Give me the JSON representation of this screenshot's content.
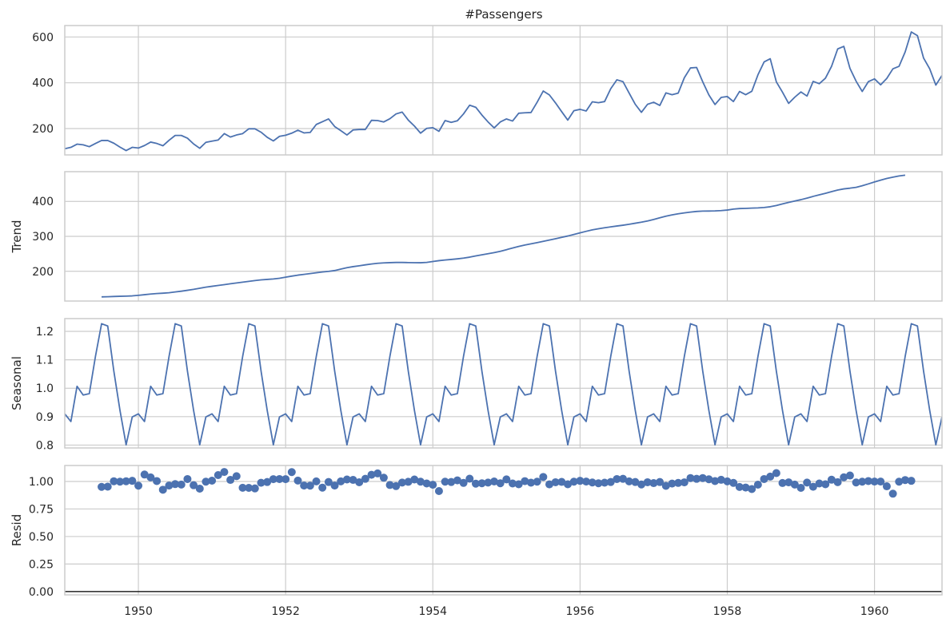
{
  "chart_data": [
    {
      "type": "line",
      "title": "#Passengers",
      "ylabel": "",
      "ylim": [
        85,
        650
      ],
      "yticks": [
        200,
        400,
        600
      ],
      "ytick_labels": [
        "200",
        "400",
        "600"
      ],
      "x_start": "1949-01",
      "series": [
        {
          "values": [
            112,
            118,
            132,
            129,
            121,
            135,
            148,
            148,
            136,
            119,
            104,
            118,
            115,
            126,
            141,
            135,
            125,
            149,
            170,
            170,
            158,
            133,
            114,
            140,
            145,
            150,
            178,
            163,
            172,
            178,
            199,
            199,
            184,
            162,
            146,
            166,
            171,
            180,
            193,
            181,
            183,
            218,
            230,
            242,
            209,
            191,
            172,
            194,
            196,
            196,
            236,
            235,
            229,
            243,
            264,
            272,
            237,
            211,
            180,
            201,
            204,
            188,
            235,
            227,
            234,
            264,
            302,
            293,
            259,
            229,
            203,
            229,
            242,
            233,
            267,
            269,
            270,
            315,
            364,
            347,
            312,
            274,
            237,
            278,
            284,
            277,
            317,
            313,
            318,
            374,
            413,
            405,
            355,
            306,
            271,
            306,
            315,
            301,
            356,
            348,
            355,
            422,
            465,
            467,
            404,
            347,
            305,
            336,
            340,
            318,
            362,
            348,
            363,
            435,
            491,
            505,
            404,
            359,
            310,
            337,
            360,
            342,
            406,
            396,
            420,
            472,
            548,
            559,
            463,
            407,
            362,
            405,
            417,
            391,
            419,
            461,
            472,
            535,
            622,
            606,
            508,
            461,
            390,
            432
          ]
        }
      ]
    },
    {
      "type": "line",
      "title": "",
      "ylabel": "Trend",
      "ylim": [
        115,
        485
      ],
      "yticks": [
        200,
        300,
        400
      ],
      "ytick_labels": [
        "200",
        "300",
        "400"
      ],
      "x_start": "1949-07",
      "series": [
        {
          "values": [
            126.8,
            127.3,
            127.96,
            128.58,
            129.0,
            129.75,
            131.25,
            133.08,
            134.92,
            136.42,
            137.42,
            138.75,
            140.92,
            143.17,
            145.71,
            148.42,
            151.54,
            154.71,
            157.13,
            159.54,
            161.83,
            164.38,
            166.67,
            169.0,
            171.25,
            173.58,
            175.46,
            176.83,
            178.04,
            180.17,
            183.13,
            186.21,
            189.04,
            191.29,
            193.58,
            195.83,
            198.04,
            199.75,
            202.21,
            206.25,
            210.42,
            213.38,
            215.83,
            218.5,
            220.92,
            222.92,
            224.0,
            224.71,
            225.33,
            225.33,
            224.96,
            224.58,
            224.46,
            225.54,
            228.0,
            230.46,
            232.25,
            233.92,
            235.63,
            237.75,
            240.5,
            243.96,
            247.17,
            250.25,
            253.5,
            257.13,
            261.83,
            266.67,
            271.13,
            275.21,
            278.5,
            281.96,
            285.75,
            289.33,
            293.25,
            297.17,
            301.0,
            305.46,
            309.96,
            314.42,
            318.63,
            321.75,
            324.5,
            327.08,
            329.54,
            331.83,
            334.46,
            337.54,
            340.54,
            344.08,
            348.25,
            353.0,
            357.63,
            361.38,
            364.5,
            367.17,
            369.46,
            371.21,
            372.17,
            372.42,
            372.75,
            373.63,
            375.25,
            377.92,
            379.5,
            380.0,
            380.71,
            381.42,
            382.58,
            384.67,
            388.33,
            392.71,
            397.08,
            401.04,
            404.92,
            409.42,
            414.33,
            418.83,
            423.17,
            428.0,
            432.5,
            435.75,
            437.79,
            440.29,
            444.75,
            450.0,
            455.5,
            460.71,
            465.5,
            469.33,
            472.75,
            475.04
          ]
        }
      ]
    },
    {
      "type": "line",
      "title": "",
      "ylabel": "Seasonal",
      "ylim": [
        0.79,
        1.245
      ],
      "yticks": [
        0.8,
        0.9,
        1.0,
        1.1,
        1.2
      ],
      "ytick_labels": [
        "0.8",
        "0.9",
        "1.0",
        "1.1",
        "1.2"
      ],
      "x_start": "1949-01",
      "series": [
        {
          "pattern_values": [
            0.91,
            0.883,
            1.007,
            0.976,
            0.981,
            1.112,
            1.227,
            1.219,
            1.06,
            0.922,
            0.801,
            0.899
          ],
          "repeat_years": 12
        }
      ]
    },
    {
      "type": "scatter",
      "title": "",
      "ylabel": "Resid",
      "ylim": [
        -0.03,
        1.145
      ],
      "yticks": [
        0.0,
        0.25,
        0.5,
        0.75,
        1.0
      ],
      "ytick_labels": [
        "0.00",
        "0.25",
        "0.50",
        "0.75",
        "1.00"
      ],
      "baseline": 0,
      "x_start": "1949-07",
      "series": [
        {
          "values": [
            0.951,
            0.953,
            1.002,
            0.998,
            1.002,
            1.006,
            0.962,
            1.063,
            1.037,
            1.004,
            0.925,
            0.963,
            0.976,
            0.972,
            1.022,
            0.966,
            0.935,
            0.998,
            1.007,
            1.058,
            1.086,
            1.014,
            1.048,
            0.943,
            0.942,
            0.937,
            0.988,
            0.995,
            1.021,
            1.022,
            1.021,
            1.085,
            1.008,
            0.963,
            0.962,
            1.001,
            0.944,
            0.995,
            0.963,
            1.001,
            1.018,
            1.014,
            0.993,
            1.024,
            1.061,
            1.073,
            1.034,
            0.968,
            0.958,
            0.99,
            0.997,
            1.018,
            0.998,
            0.982,
            0.97,
            0.913,
            0.998,
            0.995,
            1.01,
            0.987,
            1.025,
            0.98,
            0.984,
            0.99,
            1.0,
            0.984,
            1.019,
            0.982,
            0.975,
            1.003,
            0.989,
            0.998,
            1.041,
            0.974,
            0.993,
            0.996,
            0.975,
            0.998,
            1.006,
            0.999,
            0.991,
            0.984,
            0.989,
            0.995,
            1.022,
            1.024,
            1.001,
            0.995,
            0.973,
            0.993,
            0.985,
            0.995,
            0.96,
            0.981,
            0.987,
            0.992,
            1.031,
            1.024,
            1.031,
            1.02,
            1.004,
            1.015,
            1.001,
            0.987,
            0.95,
            0.945,
            0.931,
            0.971,
            1.022,
            1.044,
            1.076,
            0.986,
            0.992,
            0.972,
            0.942,
            0.99,
            0.952,
            0.982,
            0.975,
            1.016,
            0.994,
            1.038,
            1.054,
            0.991,
            0.998,
            1.004,
            0.999,
            0.999,
            0.956,
            0.889,
            0.998,
            1.013,
            1.006
          ]
        }
      ]
    }
  ],
  "x_axis": {
    "xlim": [
      1949.0,
      1960.917
    ],
    "ticks": [
      1950,
      1952,
      1954,
      1956,
      1958,
      1960
    ],
    "tick_labels": [
      "1950",
      "1952",
      "1954",
      "1956",
      "1958",
      "1960"
    ]
  },
  "colors": {
    "series": "#4c72b0",
    "grid": "#cccccc",
    "baseline": "#000000",
    "text": "#262626"
  }
}
